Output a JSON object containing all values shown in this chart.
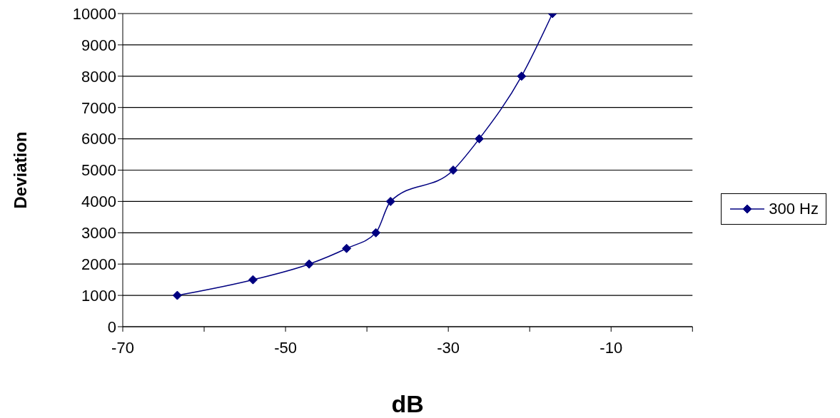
{
  "chart_data": {
    "type": "line",
    "xlabel": "dB",
    "ylabel": "Deviation",
    "x": [
      -63.3,
      -54.0,
      -47.1,
      -42.5,
      -38.9,
      -37.1,
      -29.4,
      -26.2,
      -21.0,
      -17.2
    ],
    "series": [
      {
        "name": "300 Hz",
        "color": "#000080",
        "values": [
          1000,
          1500,
          2000,
          2500,
          3000,
          4000,
          5000,
          6000,
          8000,
          10000
        ]
      }
    ],
    "xlim": [
      -70,
      0
    ],
    "xticks": [
      -70,
      {
        "value": -60,
        "label": null
      },
      -50,
      {
        "value": -40,
        "label": null
      },
      -30,
      {
        "value": -20,
        "label": null
      },
      -10,
      {
        "value": 0,
        "label": null
      }
    ],
    "ylim": [
      0,
      10000
    ],
    "yticks": [
      0,
      1000,
      2000,
      3000,
      4000,
      5000,
      6000,
      7000,
      8000,
      9000,
      10000
    ],
    "grid": "y",
    "legend": "right",
    "marker": "diamond",
    "line_style": "solid"
  }
}
